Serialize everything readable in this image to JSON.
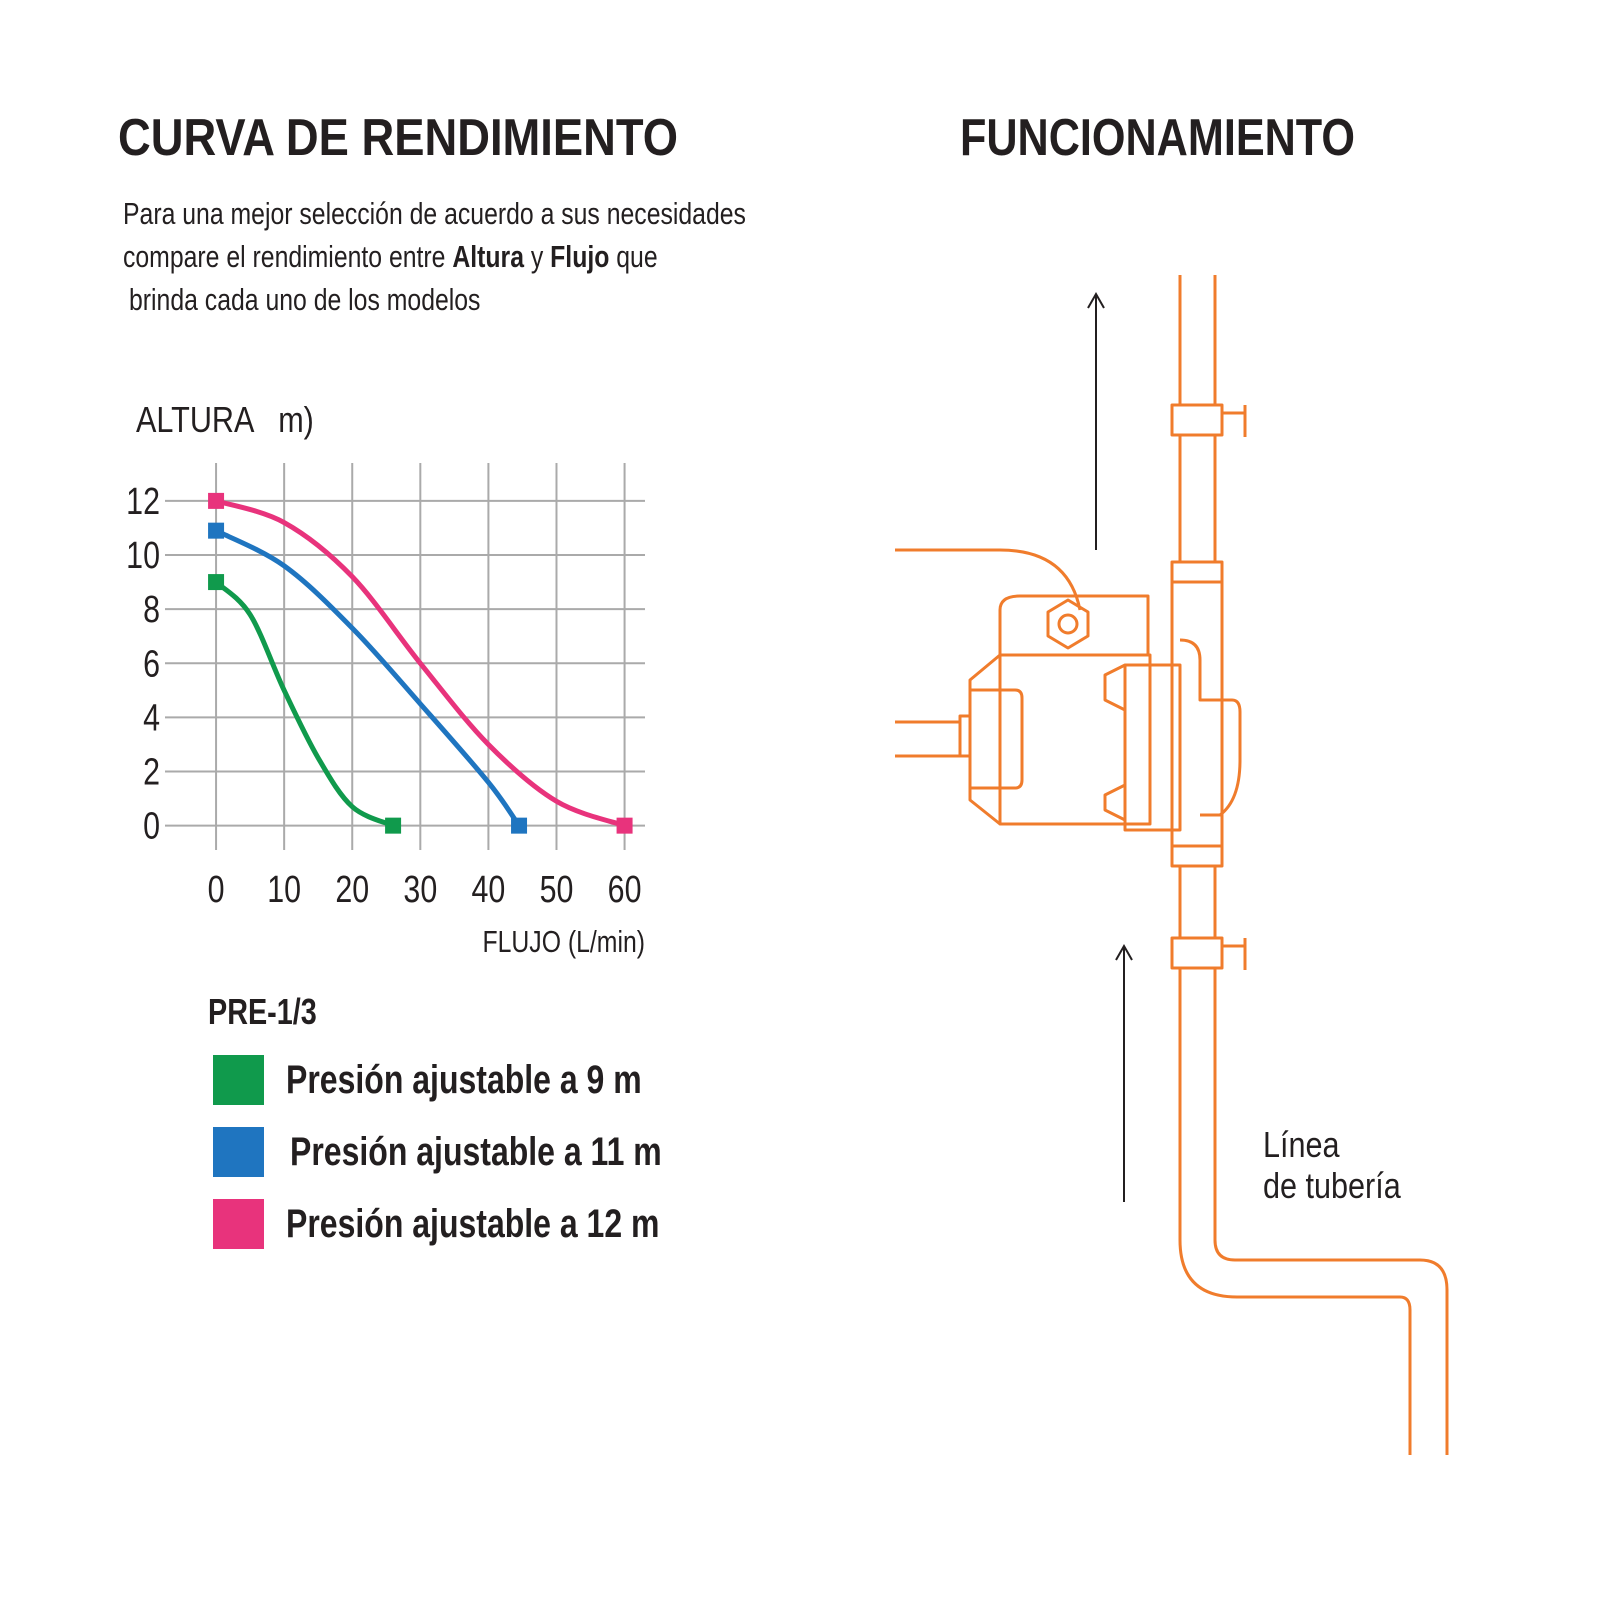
{
  "chart_data": {
    "type": "line",
    "title": "CURVA DE RENDIMIENTO",
    "description": {
      "line1": "Para una mejor selección de acuerdo a sus necesidades",
      "line2": [
        "compare el rendimiento entre ",
        "Altura",
        " y ",
        "Flujo",
        " que"
      ],
      "line3": "brinda cada uno de los modelos"
    },
    "ylabel": "ALTURA   m)",
    "xlabel": "FLUJO (L/min)",
    "legend_title": "PRE-1/3",
    "xlim": [
      -7.5,
      63
    ],
    "ylim": [
      -0.9,
      13.4
    ],
    "xticks": [
      0,
      10,
      20,
      30,
      40,
      50,
      60
    ],
    "yticks": [
      0,
      2,
      4,
      6,
      8,
      10,
      12
    ],
    "grid": true,
    "series": [
      {
        "name": "Presión ajustable a 9 m",
        "color": "#109a4c",
        "x": [
          0,
          5,
          10,
          15,
          20,
          26
        ],
        "values": [
          9,
          7.8,
          5,
          2.5,
          0.7,
          0
        ]
      },
      {
        "name": "Presión ajustable a 11 m",
        "color": "#1f75c0",
        "x": [
          0,
          10,
          20,
          30,
          40,
          44.5
        ],
        "values": [
          10.9,
          9.6,
          7.3,
          4.5,
          1.6,
          0
        ]
      },
      {
        "name": "Presión ajustable a 12 m",
        "color": "#e8337c",
        "x": [
          0,
          10,
          20,
          30,
          40,
          50,
          60
        ],
        "values": [
          12,
          11.2,
          9.2,
          6,
          3,
          0.9,
          0
        ]
      }
    ]
  },
  "diagram": {
    "title": "FUNCIONAMIENTO",
    "pipe_label": [
      "Línea",
      "de tubería"
    ]
  }
}
